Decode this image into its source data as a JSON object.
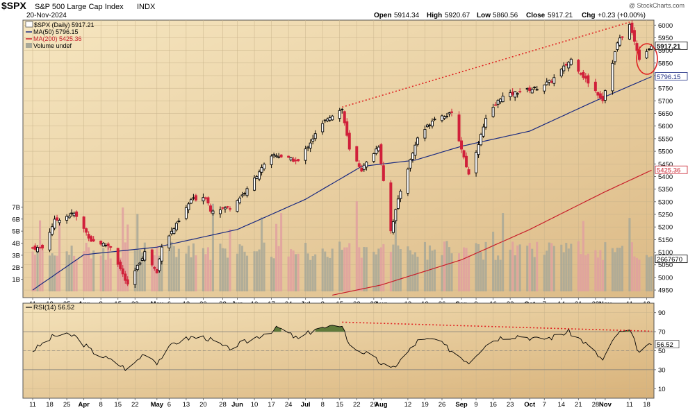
{
  "header": {
    "symbol": "$SPX",
    "name": "S&P 500 Large Cap Index",
    "exchange": "INDX",
    "date": "20-Nov-2024",
    "watermark": "@ StockCharts.com",
    "open_label": "Open",
    "open": "5914.34",
    "high_label": "High",
    "high": "5920.67",
    "low_label": "Low",
    "low": "5860.56",
    "close_label": "Close",
    "close": "5917.21",
    "chg_label": "Chg",
    "chg": "+0.23 (+0.00%)"
  },
  "legend": {
    "price": "$SPX (Daily) 5917.21",
    "ma50": "MA(50) 5796.15",
    "ma200": "MA(200) 5425.36",
    "volume": "Volume undef",
    "rsi": "RSI(14) 56.52"
  },
  "colors": {
    "panel": "#f0dcb0",
    "up": "#000000",
    "down": "#d0203a",
    "ma50": "#1a2a80",
    "ma200": "#c81e2a",
    "vol_up": "#a8a898",
    "vol_down": "#e0a0a0",
    "rsi": "#000000",
    "rsi_fill": "#5f7a3a",
    "trend": "#e02020"
  },
  "chart_data": [
    {
      "type": "candlestick",
      "title": "$SPX S&P 500 Large Cap Index INDX",
      "x_ticks": [
        "11",
        "18",
        "25",
        "Apr",
        "8",
        "15",
        "22",
        "May",
        "6",
        "13",
        "20",
        "28",
        "Jun",
        "10",
        "17",
        "24",
        "Jul",
        "8",
        "15",
        "22",
        "29",
        "Aug",
        "12",
        "19",
        "26",
        "Sep",
        "9",
        "16",
        "23",
        "Oct",
        "7",
        "14",
        "21",
        "28",
        "Nov",
        "11",
        "18"
      ],
      "y_ticks": [
        4950,
        5000,
        5050,
        5100,
        5150,
        5200,
        5250,
        5300,
        5350,
        5400,
        5450,
        5500,
        5550,
        5600,
        5650,
        5700,
        5750,
        5800,
        5850,
        5900,
        5950,
        6000
      ],
      "ylim": [
        4920,
        6020
      ],
      "last_close": 5917.21,
      "ma50_last": 5796.15,
      "ma200_last": 5425.36,
      "close_labels": [
        "5917.21",
        "5796.15",
        "5425.36"
      ],
      "close_series": [
        [
          "2024-03-11",
          5117
        ],
        [
          "2024-03-15",
          5117
        ],
        [
          "2024-03-20",
          5225
        ],
        [
          "2024-03-28",
          5254
        ],
        [
          "2024-04-04",
          5147
        ],
        [
          "2024-04-12",
          5123
        ],
        [
          "2024-04-19",
          4967
        ],
        [
          "2024-04-26",
          5100
        ],
        [
          "2024-05-01",
          5018
        ],
        [
          "2024-05-03",
          5127
        ],
        [
          "2024-05-10",
          5222
        ],
        [
          "2024-05-15",
          5308
        ],
        [
          "2024-05-21",
          5321
        ],
        [
          "2024-05-23",
          5268
        ],
        [
          "2024-05-31",
          5277
        ],
        [
          "2024-06-07",
          5347
        ],
        [
          "2024-06-12",
          5421
        ],
        [
          "2024-06-18",
          5487
        ],
        [
          "2024-06-28",
          5460
        ],
        [
          "2024-07-05",
          5567
        ],
        [
          "2024-07-10",
          5633
        ],
        [
          "2024-07-16",
          5667
        ],
        [
          "2024-07-19",
          5505
        ],
        [
          "2024-07-24",
          5427
        ],
        [
          "2024-07-31",
          5522
        ],
        [
          "2024-08-05",
          5186
        ],
        [
          "2024-08-09",
          5344
        ],
        [
          "2024-08-16",
          5554
        ],
        [
          "2024-08-23",
          5634
        ],
        [
          "2024-08-30",
          5648
        ],
        [
          "2024-09-06",
          5408
        ],
        [
          "2024-09-13",
          5626
        ],
        [
          "2024-09-19",
          5713
        ],
        [
          "2024-09-27",
          5738
        ],
        [
          "2024-10-04",
          5751
        ],
        [
          "2024-10-10",
          5780
        ],
        [
          "2024-10-18",
          5864
        ],
        [
          "2024-10-23",
          5797
        ],
        [
          "2024-10-31",
          5705
        ],
        [
          "2024-11-06",
          5929
        ],
        [
          "2024-11-11",
          6001
        ],
        [
          "2024-11-15",
          5870
        ],
        [
          "2024-11-20",
          5917
        ]
      ],
      "ma50_series": [
        [
          "2024-03-11",
          4950
        ],
        [
          "2024-04-01",
          5090
        ],
        [
          "2024-05-01",
          5120
        ],
        [
          "2024-06-03",
          5190
        ],
        [
          "2024-07-01",
          5310
        ],
        [
          "2024-07-24",
          5440
        ],
        [
          "2024-08-15",
          5465
        ],
        [
          "2024-09-03",
          5520
        ],
        [
          "2024-10-01",
          5580
        ],
        [
          "2024-10-28",
          5700
        ],
        [
          "2024-11-20",
          5796
        ]
      ],
      "ma200_series": [
        [
          "2024-07-12",
          4930
        ],
        [
          "2024-08-01",
          4970
        ],
        [
          "2024-09-03",
          5070
        ],
        [
          "2024-10-01",
          5190
        ],
        [
          "2024-11-01",
          5340
        ],
        [
          "2024-11-20",
          5425
        ]
      ]
    },
    {
      "type": "bar",
      "title": "Volume",
      "y_ticks": [
        "1B",
        "2B",
        "3B",
        "4B",
        "5B",
        "6B",
        "7B"
      ],
      "ylim": [
        0,
        7.6
      ],
      "last_value": "2667670"
    },
    {
      "type": "line",
      "title": "RSI(14)",
      "y_ticks": [
        10,
        30,
        50,
        70,
        90
      ],
      "ylim": [
        0,
        100
      ],
      "overbought": 70,
      "oversold": 30,
      "last_value": 56.52,
      "series": [
        [
          "2024-03-11",
          50
        ],
        [
          "2024-03-20",
          66
        ],
        [
          "2024-03-28",
          66
        ],
        [
          "2024-04-04",
          50
        ],
        [
          "2024-04-15",
          36
        ],
        [
          "2024-04-19",
          30
        ],
        [
          "2024-04-26",
          48
        ],
        [
          "2024-05-01",
          38
        ],
        [
          "2024-05-08",
          58
        ],
        [
          "2024-05-15",
          64
        ],
        [
          "2024-05-21",
          64
        ],
        [
          "2024-05-30",
          52
        ],
        [
          "2024-06-07",
          60
        ],
        [
          "2024-06-14",
          68
        ],
        [
          "2024-06-20",
          74
        ],
        [
          "2024-06-28",
          62
        ],
        [
          "2024-07-05",
          73
        ],
        [
          "2024-07-11",
          74
        ],
        [
          "2024-07-16",
          78
        ],
        [
          "2024-07-19",
          55
        ],
        [
          "2024-07-26",
          47
        ],
        [
          "2024-08-05",
          30
        ],
        [
          "2024-08-09",
          40
        ],
        [
          "2024-08-16",
          60
        ],
        [
          "2024-08-23",
          62
        ],
        [
          "2024-09-06",
          38
        ],
        [
          "2024-09-13",
          57
        ],
        [
          "2024-09-19",
          64
        ],
        [
          "2024-09-27",
          66
        ],
        [
          "2024-10-04",
          62
        ],
        [
          "2024-10-10",
          64
        ],
        [
          "2024-10-17",
          70
        ],
        [
          "2024-10-23",
          60
        ],
        [
          "2024-10-31",
          40
        ],
        [
          "2024-11-06",
          68
        ],
        [
          "2024-11-11",
          71
        ],
        [
          "2024-11-15",
          48
        ],
        [
          "2024-11-20",
          56.52
        ]
      ]
    }
  ]
}
